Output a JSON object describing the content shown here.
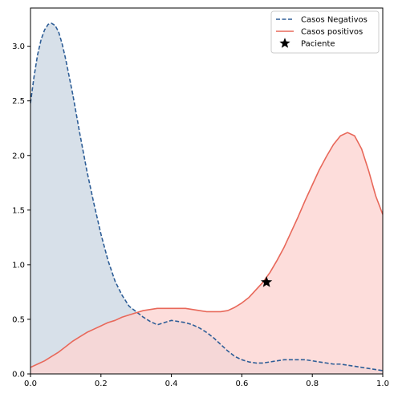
{
  "chart_data": {
    "type": "area",
    "xlim": [
      0.0,
      1.0
    ],
    "ylim": [
      0.0,
      3.35
    ],
    "x_ticks": [
      "0.0",
      "0.2",
      "0.4",
      "0.6",
      "0.8",
      "1.0"
    ],
    "y_ticks": [
      "0.0",
      "0.5",
      "1.0",
      "1.5",
      "2.0",
      "2.5",
      "3.0"
    ],
    "grid": false,
    "legend_position": "top-right",
    "series": [
      {
        "name": "Casos Negativos",
        "style": "dashed",
        "color": "#2e5e97",
        "fill_color": "#cdd8e4",
        "x": [
          0.0,
          0.01,
          0.02,
          0.03,
          0.04,
          0.05,
          0.06,
          0.07,
          0.08,
          0.09,
          0.1,
          0.12,
          0.14,
          0.16,
          0.18,
          0.2,
          0.22,
          0.24,
          0.26,
          0.28,
          0.3,
          0.32,
          0.34,
          0.36,
          0.38,
          0.4,
          0.42,
          0.44,
          0.46,
          0.48,
          0.5,
          0.52,
          0.54,
          0.56,
          0.58,
          0.6,
          0.62,
          0.64,
          0.66,
          0.68,
          0.7,
          0.72,
          0.74,
          0.76,
          0.78,
          0.8,
          0.82,
          0.84,
          0.86,
          0.88,
          0.9,
          0.92,
          0.94,
          0.96,
          0.98,
          1.0
        ],
        "y": [
          2.48,
          2.72,
          2.92,
          3.06,
          3.15,
          3.2,
          3.21,
          3.19,
          3.13,
          3.02,
          2.88,
          2.56,
          2.2,
          1.86,
          1.56,
          1.28,
          1.04,
          0.85,
          0.72,
          0.62,
          0.57,
          0.52,
          0.48,
          0.45,
          0.47,
          0.49,
          0.48,
          0.47,
          0.45,
          0.42,
          0.38,
          0.33,
          0.27,
          0.21,
          0.16,
          0.13,
          0.11,
          0.1,
          0.1,
          0.11,
          0.12,
          0.13,
          0.13,
          0.13,
          0.13,
          0.12,
          0.11,
          0.1,
          0.09,
          0.09,
          0.08,
          0.07,
          0.06,
          0.05,
          0.04,
          0.03
        ]
      },
      {
        "name": "Casos positivos",
        "style": "solid",
        "color": "#e8685a",
        "fill_color": "#fcd5d2",
        "x": [
          0.0,
          0.02,
          0.04,
          0.06,
          0.08,
          0.1,
          0.12,
          0.14,
          0.16,
          0.18,
          0.2,
          0.22,
          0.24,
          0.26,
          0.28,
          0.3,
          0.32,
          0.34,
          0.36,
          0.38,
          0.4,
          0.42,
          0.44,
          0.46,
          0.48,
          0.5,
          0.52,
          0.54,
          0.56,
          0.58,
          0.6,
          0.62,
          0.64,
          0.66,
          0.68,
          0.7,
          0.72,
          0.74,
          0.76,
          0.78,
          0.8,
          0.82,
          0.84,
          0.86,
          0.88,
          0.9,
          0.92,
          0.94,
          0.96,
          0.98,
          1.0
        ],
        "y": [
          0.06,
          0.09,
          0.12,
          0.16,
          0.2,
          0.25,
          0.3,
          0.34,
          0.38,
          0.41,
          0.44,
          0.47,
          0.49,
          0.52,
          0.54,
          0.56,
          0.58,
          0.59,
          0.6,
          0.6,
          0.6,
          0.6,
          0.6,
          0.59,
          0.58,
          0.57,
          0.57,
          0.57,
          0.58,
          0.61,
          0.65,
          0.7,
          0.77,
          0.84,
          0.93,
          1.04,
          1.16,
          1.3,
          1.44,
          1.59,
          1.73,
          1.87,
          1.99,
          2.1,
          2.18,
          2.21,
          2.18,
          2.06,
          1.86,
          1.63,
          1.46
        ]
      }
    ],
    "marker": {
      "name": "Paciente",
      "shape": "star",
      "color": "#000000",
      "x": 0.67,
      "y": 0.84
    }
  }
}
